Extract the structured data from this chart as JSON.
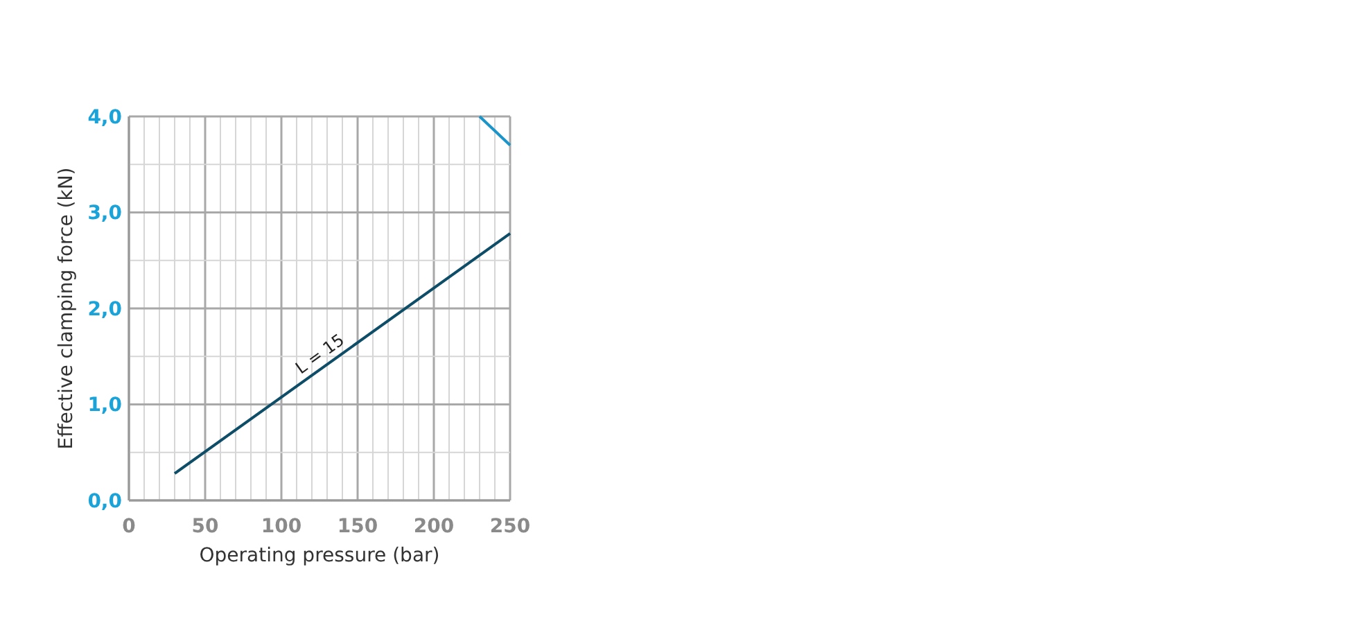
{
  "chart_data": {
    "type": "line",
    "xlabel": "Operating pressure (bar)",
    "ylabel": "Effective clamping force (kN)",
    "series": [
      {
        "color": "#0e4d68",
        "x": [
          30,
          250
        ],
        "values": [
          0.28,
          2.78
        ]
      },
      {
        "color": "#1b95c9",
        "x": [
          230,
          250
        ],
        "values": [
          4.0,
          3.7
        ]
      }
    ],
    "xlim": [
      0,
      250
    ],
    "ylim": [
      0,
      4
    ],
    "xticks": [
      0,
      {
        "value": 10,
        "label": null
      },
      {
        "value": 20,
        "label": null
      },
      {
        "value": 30,
        "label": null
      },
      {
        "value": 40,
        "label": null
      },
      50,
      {
        "value": 60,
        "label": null
      },
      {
        "value": 70,
        "label": null
      },
      {
        "value": 80,
        "label": null
      },
      {
        "value": 90,
        "label": null
      },
      100,
      {
        "value": 110,
        "label": null
      },
      {
        "value": 120,
        "label": null
      },
      {
        "value": 130,
        "label": null
      },
      {
        "value": 140,
        "label": null
      },
      150,
      {
        "value": 160,
        "label": null
      },
      {
        "value": 170,
        "label": null
      },
      {
        "value": 180,
        "label": null
      },
      {
        "value": 190,
        "label": null
      },
      200,
      {
        "value": 210,
        "label": null
      },
      {
        "value": 220,
        "label": null
      },
      {
        "value": 230,
        "label": null
      },
      {
        "value": 240,
        "label": null
      },
      250
    ],
    "yticks": [
      {
        "value": 0,
        "label": "0,0"
      },
      {
        "value": 0.5,
        "label": null
      },
      {
        "value": 1,
        "label": "1,0"
      },
      {
        "value": 1.5,
        "label": null
      },
      {
        "value": 2,
        "label": "2,0"
      },
      {
        "value": 2.5,
        "label": null
      },
      {
        "value": 3,
        "label": "3,0"
      },
      {
        "value": 3.5,
        "label": null
      },
      {
        "value": 4,
        "label": "4,0"
      }
    ],
    "grid": true,
    "line_style": "solid",
    "marker": "none",
    "annotations": [
      {
        "text": "L = 15",
        "x": 130,
        "y": 1.42
      }
    ]
  }
}
